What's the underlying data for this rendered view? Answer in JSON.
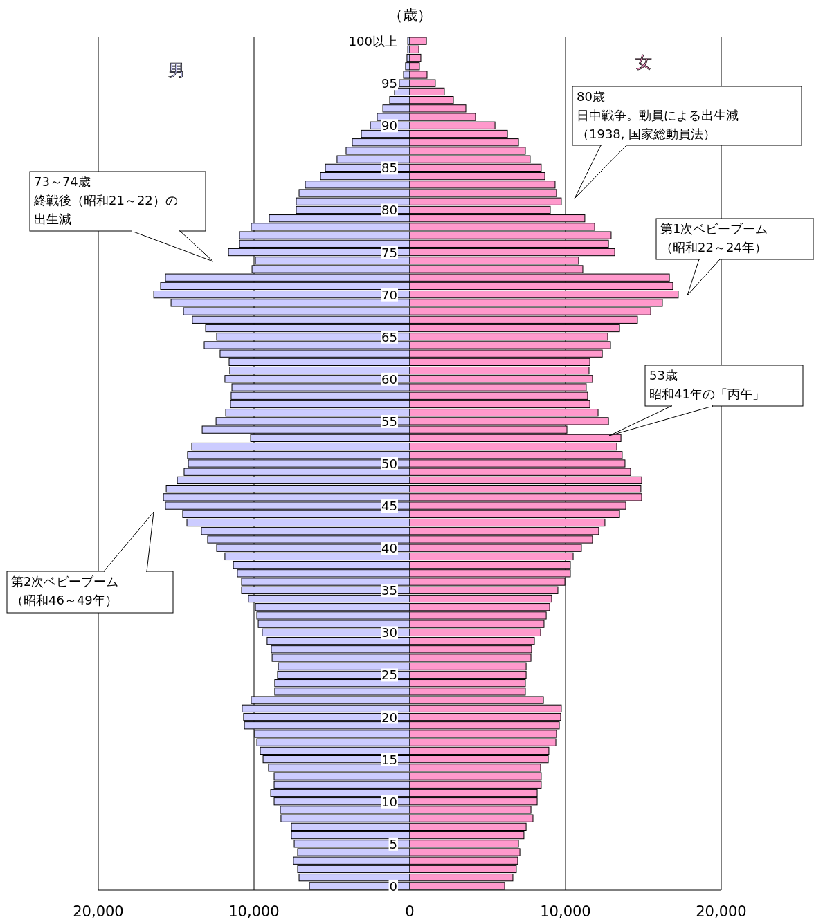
{
  "chart_data": {
    "type": "bar",
    "orientation": "horizontal",
    "ylabel": "（歳）",
    "categories": [
      "100以上",
      null,
      null,
      null,
      null,
      "95",
      null,
      null,
      null,
      null,
      "90",
      null,
      null,
      null,
      null,
      "85",
      null,
      null,
      null,
      null,
      "80",
      null,
      null,
      null,
      null,
      "75",
      null,
      null,
      null,
      null,
      "70",
      null,
      null,
      null,
      null,
      "65",
      null,
      null,
      null,
      null,
      "60",
      null,
      null,
      null,
      null,
      "55",
      null,
      null,
      null,
      null,
      "50",
      null,
      null,
      null,
      null,
      "45",
      null,
      null,
      null,
      null,
      "40",
      null,
      null,
      null,
      null,
      "35",
      null,
      null,
      null,
      null,
      "30",
      null,
      null,
      null,
      null,
      "25",
      null,
      null,
      null,
      null,
      "20",
      null,
      null,
      null,
      null,
      "15",
      null,
      null,
      null,
      null,
      "10",
      null,
      null,
      null,
      null,
      "5",
      null,
      null,
      null,
      null,
      "0"
    ],
    "series": [
      {
        "name": "男",
        "color": "#ccccff",
        "values": [
          -130,
          -130,
          -180,
          -270,
          -400,
          -670,
          -980,
          -1290,
          -1730,
          -2090,
          -2530,
          -3110,
          -3690,
          -4090,
          -4670,
          -5420,
          -5730,
          -6710,
          -7110,
          -7290,
          -7290,
          -9020,
          -10180,
          -10930,
          -10930,
          -11640,
          -9910,
          -10130,
          -15690,
          -16000,
          -16440,
          -15330,
          -14530,
          -13960,
          -13110,
          -12400,
          -13200,
          -12180,
          -11600,
          -11560,
          -11870,
          -11420,
          -11470,
          -11510,
          -11820,
          -12440,
          -13330,
          -10220,
          -14000,
          -14270,
          -14220,
          -14490,
          -14930,
          -15640,
          -15820,
          -15690,
          -14580,
          -14310,
          -13380,
          -12980,
          -12400,
          -11870,
          -11330,
          -11070,
          -10800,
          -10800,
          -10360,
          -9910,
          -9820,
          -9730,
          -9470,
          -9160,
          -8890,
          -8840,
          -8440,
          -8490,
          -8670,
          -8670,
          -10180,
          -10760,
          -10670,
          -10620,
          -9960,
          -9820,
          -9600,
          -9420,
          -9070,
          -8710,
          -8710,
          -8930,
          -8710,
          -8310,
          -8270,
          -7600,
          -7600,
          -7420,
          -7200,
          -7470,
          -7200,
          -7110,
          -6440
        ]
      },
      {
        "name": "女",
        "color": "#ff99cc",
        "values": [
          1070,
          580,
          710,
          620,
          1110,
          1640,
          2220,
          2800,
          3600,
          4220,
          5470,
          6270,
          6980,
          7420,
          7730,
          8440,
          8670,
          9330,
          9420,
          9730,
          9020,
          11240,
          11870,
          12930,
          12760,
          13160,
          10840,
          11110,
          16670,
          16890,
          17240,
          16220,
          15470,
          14620,
          13470,
          12710,
          12890,
          12360,
          11560,
          11510,
          11730,
          11330,
          11420,
          11560,
          12090,
          12760,
          10090,
          13560,
          13290,
          13640,
          13820,
          14180,
          14890,
          14840,
          14890,
          13870,
          13470,
          12530,
          12130,
          11730,
          11020,
          10490,
          10310,
          10310,
          9960,
          9510,
          9110,
          8980,
          8760,
          8620,
          8400,
          8000,
          7820,
          7780,
          7470,
          7470,
          7420,
          7420,
          8580,
          9730,
          9690,
          9600,
          9420,
          9380,
          8930,
          8890,
          8400,
          8440,
          8440,
          8180,
          8180,
          7780,
          7910,
          7470,
          7330,
          6980,
          7070,
          6930,
          6840,
          6620,
          6090
        ]
      }
    ],
    "xlim": [
      -20000,
      20000
    ],
    "xticks": [
      {
        "value": -20000,
        "label": "20,000"
      },
      {
        "value": -10000,
        "label": "10,000"
      },
      0,
      {
        "value": 10000,
        "label": "10,000"
      },
      {
        "value": 20000,
        "label": "20,000"
      }
    ],
    "grid": "x",
    "stacked": true,
    "annotations": [
      "80歳",
      "日中戦争。動員による出生減",
      "（1938, 国家総動員法）",
      "73～74歳",
      "終戦後（昭和21～22）の",
      "出生減",
      "第1次ベビーブーム",
      "（昭和22～24年）",
      "53歳",
      "昭和41年の「丙午」",
      "第2次ベビーブーム",
      "（昭和46～49年）"
    ]
  }
}
